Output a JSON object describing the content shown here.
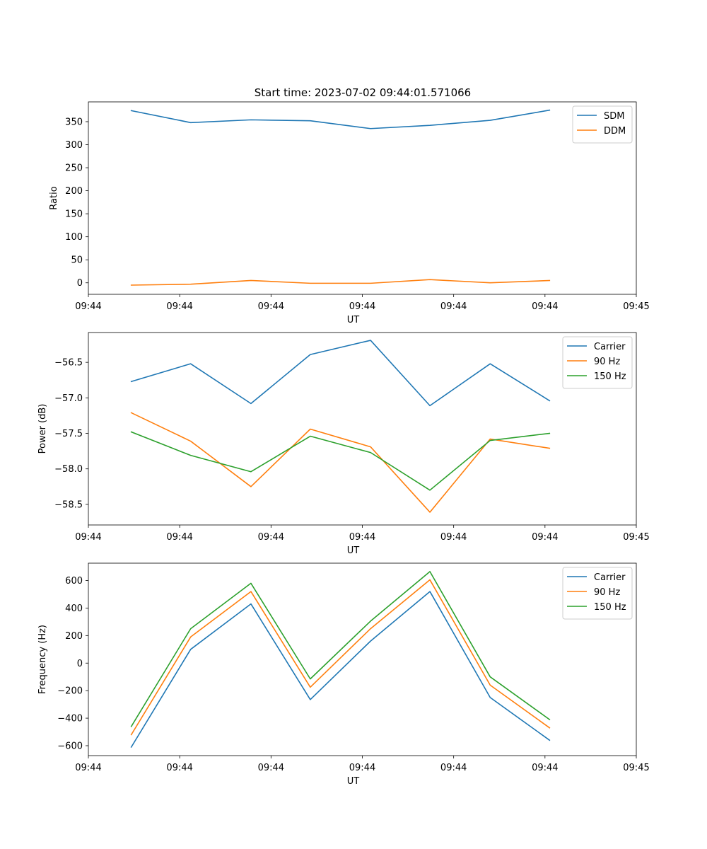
{
  "figure": {
    "title": "Start time: 2023-07-02 09:44:01.571066"
  },
  "colors": {
    "blue": "#1f77b4",
    "orange": "#ff7f0e",
    "green": "#2ca02c"
  },
  "chart_data": [
    {
      "type": "line",
      "id": "ratio",
      "title": "Start time: 2023-07-02 09:44:01.571066",
      "xlabel": "UT",
      "ylabel": "Ratio",
      "xlim": [
        0,
        6
      ],
      "ylim": [
        -25,
        393
      ],
      "x_ticks": [
        0,
        1,
        2,
        3,
        4,
        5,
        6
      ],
      "x_tick_labels": [
        "09:44",
        "09:44",
        "09:44",
        "09:44",
        "09:44",
        "09:44",
        "09:45"
      ],
      "y_ticks": [
        0,
        50,
        100,
        150,
        200,
        250,
        300,
        350
      ],
      "y_tick_labels": [
        "0",
        "50",
        "100",
        "150",
        "200",
        "250",
        "300",
        "350"
      ],
      "legend_position": "top-right",
      "x": [
        0.47,
        1.12,
        1.78,
        2.43,
        3.09,
        3.74,
        4.4,
        5.05
      ],
      "series": [
        {
          "name": "SDM",
          "color": "#1f77b4",
          "values": [
            374,
            348,
            354,
            352,
            335,
            342,
            353,
            375
          ]
        },
        {
          "name": "DDM",
          "color": "#ff7f0e",
          "values": [
            -5,
            -3,
            5,
            -1,
            -1,
            7,
            0,
            5
          ]
        }
      ]
    },
    {
      "type": "line",
      "id": "power",
      "title": "",
      "xlabel": "UT",
      "ylabel": "Power (dB)",
      "xlim": [
        0,
        6
      ],
      "ylim": [
        -58.79,
        -56.08
      ],
      "x_ticks": [
        0,
        1,
        2,
        3,
        4,
        5,
        6
      ],
      "x_tick_labels": [
        "09:44",
        "09:44",
        "09:44",
        "09:44",
        "09:44",
        "09:44",
        "09:45"
      ],
      "y_ticks": [
        -58.5,
        -58.0,
        -57.5,
        -57.0,
        -56.5
      ],
      "y_tick_labels": [
        "−58.5",
        "−58.0",
        "−57.5",
        "−57.0",
        "−56.5"
      ],
      "legend_position": "top-right",
      "x": [
        0.47,
        1.12,
        1.78,
        2.43,
        3.09,
        3.74,
        4.4,
        5.05
      ],
      "series": [
        {
          "name": "Carrier",
          "color": "#1f77b4",
          "values": [
            -56.77,
            -56.52,
            -57.08,
            -56.39,
            -56.19,
            -57.11,
            -56.52,
            -57.04
          ]
        },
        {
          "name": "90 Hz",
          "color": "#ff7f0e",
          "values": [
            -57.21,
            -57.61,
            -58.25,
            -57.44,
            -57.69,
            -58.61,
            -57.58,
            -57.71
          ]
        },
        {
          "name": "150 Hz",
          "color": "#2ca02c",
          "values": [
            -57.48,
            -57.81,
            -58.04,
            -57.54,
            -57.77,
            -58.3,
            -57.6,
            -57.5
          ]
        }
      ]
    },
    {
      "type": "line",
      "id": "frequency",
      "title": "",
      "xlabel": "UT",
      "ylabel": "Frequency (Hz)",
      "xlim": [
        0,
        6
      ],
      "ylim": [
        -672,
        726
      ],
      "x_ticks": [
        0,
        1,
        2,
        3,
        4,
        5,
        6
      ],
      "x_tick_labels": [
        "09:44",
        "09:44",
        "09:44",
        "09:44",
        "09:44",
        "09:44",
        "09:45"
      ],
      "y_ticks": [
        -600,
        -400,
        -200,
        0,
        200,
        400,
        600
      ],
      "y_tick_labels": [
        "−600",
        "−400",
        "−200",
        "0",
        "200",
        "400",
        "600"
      ],
      "legend_position": "top-right",
      "x": [
        0.47,
        1.12,
        1.78,
        2.43,
        3.09,
        3.74,
        4.4,
        5.05
      ],
      "series": [
        {
          "name": "Carrier",
          "color": "#1f77b4",
          "values": [
            -610,
            100,
            430,
            -265,
            160,
            520,
            -250,
            -560
          ]
        },
        {
          "name": "90 Hz",
          "color": "#ff7f0e",
          "values": [
            -520,
            190,
            520,
            -175,
            250,
            605,
            -160,
            -470
          ]
        },
        {
          "name": "150 Hz",
          "color": "#2ca02c",
          "values": [
            -460,
            250,
            580,
            -115,
            305,
            665,
            -100,
            -410
          ]
        }
      ]
    }
  ]
}
